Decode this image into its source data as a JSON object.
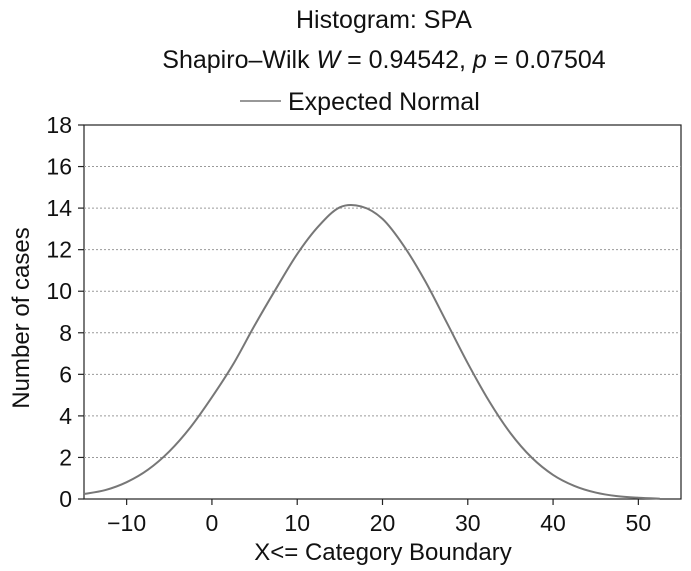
{
  "chart_data": {
    "type": "line",
    "title": "Histogram: SPA",
    "subtitle_prefix": "Shapiro–Wilk ",
    "subtitle_w_symbol": "W",
    "subtitle_w_value": " = 0.94542, ",
    "subtitle_p_symbol": "p",
    "subtitle_p_value": " = 0.07504",
    "legend": "Expected Normal",
    "legend_position": "top-center",
    "xlabel": "X<= Category Boundary",
    "ylabel": "Number of cases",
    "xlim": [
      -15,
      55
    ],
    "ylim": [
      0,
      18
    ],
    "x_ticks": [
      -10,
      0,
      10,
      20,
      30,
      40,
      50
    ],
    "x_tick_labels": [
      "−10",
      "0",
      "10",
      "20",
      "30",
      "40",
      "50"
    ],
    "y_ticks": [
      0,
      2,
      4,
      6,
      8,
      10,
      12,
      14,
      16,
      18
    ],
    "y_tick_labels": [
      "0",
      "2",
      "4",
      "6",
      "8",
      "10",
      "12",
      "14",
      "16",
      "18"
    ],
    "grid": "horizontal dotted",
    "series": [
      {
        "name": "Expected Normal",
        "color": "#777777",
        "x": [
          -15,
          -12.5,
          -10,
          -7.5,
          -5,
          -2.5,
          0,
          2.5,
          5,
          7.5,
          10,
          12.5,
          15,
          17.5,
          20,
          22.5,
          25,
          27.5,
          30,
          32.5,
          35,
          37.5,
          40,
          42.5,
          45,
          47.5,
          50,
          52.5
        ],
        "y": [
          0.24,
          0.43,
          0.81,
          1.41,
          2.29,
          3.46,
          4.9,
          6.49,
          8.35,
          10.11,
          11.79,
          13.13,
          14.04,
          14.08,
          13.48,
          12.18,
          10.49,
          8.52,
          6.53,
          4.71,
          3.17,
          1.99,
          1.16,
          0.63,
          0.31,
          0.14,
          0.06,
          0.02
        ]
      }
    ]
  }
}
